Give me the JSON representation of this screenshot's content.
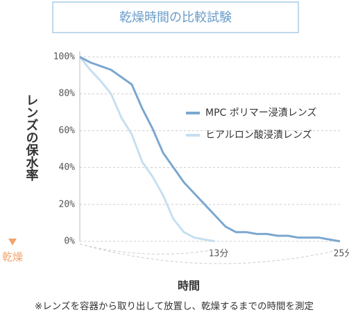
{
  "chart_data": {
    "type": "line",
    "title": "乾燥時間の比較試験",
    "ylabel": "レンズの保水率",
    "y_direction_label": "乾燥",
    "xlabel": "時間",
    "note": "※レンズを容器から取り出して放置し、乾燥するまでの時間を測定",
    "x": [
      0,
      1,
      2,
      3,
      4,
      5,
      6,
      7,
      8,
      9,
      10,
      11,
      12,
      13,
      14,
      15,
      16,
      17,
      18,
      19,
      20,
      21,
      22,
      23,
      24,
      25
    ],
    "series": [
      {
        "name": "MPC ポリマー浸漬レンズ",
        "color": "#7ba7cf",
        "values": [
          100,
          97,
          95,
          93,
          89,
          85,
          72,
          61,
          48,
          40,
          32,
          26,
          20,
          14,
          8,
          5,
          5,
          4,
          4,
          3,
          3,
          2,
          2,
          2,
          1,
          0
        ]
      },
      {
        "name": "ヒアルロン酸浸漬レンズ",
        "color": "#c6dff0",
        "values": [
          100,
          93,
          87,
          80,
          67,
          58,
          43,
          35,
          25,
          12,
          5,
          2,
          1,
          0,
          null,
          null,
          null,
          null,
          null,
          null,
          null,
          null,
          null,
          null,
          null,
          null
        ]
      }
    ],
    "xlim": [
      0,
      25
    ],
    "xticks": [
      {
        "value": 13,
        "label": "13分"
      },
      {
        "value": 25,
        "label": "25分"
      }
    ],
    "ylim": [
      0,
      100
    ],
    "yticks": [
      {
        "value": 0,
        "label": "0%"
      },
      {
        "value": 20,
        "label": "20%"
      },
      {
        "value": 40,
        "label": "40%"
      },
      {
        "value": 60,
        "label": "60%"
      },
      {
        "value": 80,
        "label": "80%"
      },
      {
        "value": 100,
        "label": "100%"
      }
    ],
    "grid": true
  }
}
